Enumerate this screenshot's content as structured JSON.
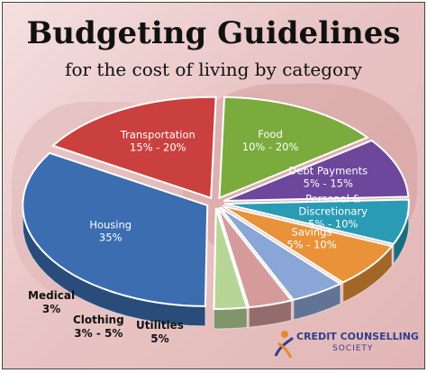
{
  "title": "Budgeting Guidelines",
  "subtitle": "for the cost of living by category",
  "logo": {
    "name": "CREDIT COUNSELLING",
    "sub": "SOCIETY"
  },
  "chart_data": {
    "type": "pie",
    "title": "Budgeting Guidelines",
    "subtitle": "for the cost of living by category",
    "slices": [
      {
        "label": "Housing",
        "range": "35%",
        "value": 35,
        "color": "#3b6db0"
      },
      {
        "label": "Transportation",
        "range": "15% - 20%",
        "value": 17.5,
        "color": "#c9403f"
      },
      {
        "label": "Food",
        "range": "10% - 20%",
        "value": 15,
        "color": "#7bab3c"
      },
      {
        "label": "Debt Payments",
        "range": "5% - 15%",
        "value": 10,
        "color": "#6c479c"
      },
      {
        "label": "Personal & Discretionary",
        "range": "5% - 10%",
        "value": 7.5,
        "color": "#2a9bb5"
      },
      {
        "label": "Savings",
        "range": "5% - 10%",
        "value": 7.5,
        "color": "#e9923a"
      },
      {
        "label": "Utilities",
        "range": "5%",
        "value": 5,
        "color": "#8aa6d6"
      },
      {
        "label": "Clothing",
        "range": "3% - 5%",
        "value": 4,
        "color": "#d59a9a"
      },
      {
        "label": "Medical",
        "range": "3%",
        "value": 3,
        "color": "#b7d597"
      }
    ]
  }
}
